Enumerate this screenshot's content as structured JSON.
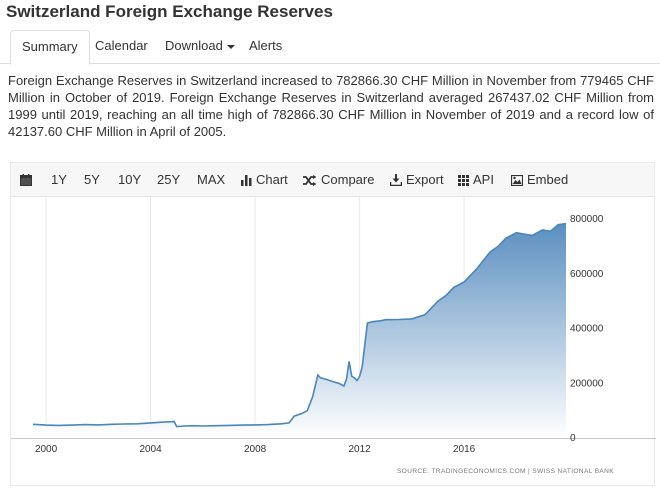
{
  "page": {
    "title": "Switzerland Foreign Exchange Reserves"
  },
  "tabs": [
    {
      "label": "Summary",
      "active": true
    },
    {
      "label": "Calendar"
    },
    {
      "label": "Download"
    },
    {
      "label": "Alerts"
    }
  ],
  "summary_text": "Foreign Exchange Reserves in Switzerland increased to 782866.30 CHF Million in November from 779465 CHF Million in October of 2019. Foreign Exchange Reserves in Switzerland averaged 267437.02 CHF Million from 1999 until 2019, reaching an all time high of 782866.30 CHF Million in November of 2019 and a record low of 42137.60 CHF Million in April of 2005.",
  "toolbar": {
    "ranges": [
      "1Y",
      "5Y",
      "10Y",
      "25Y",
      "MAX"
    ],
    "chart_label": "Chart",
    "compare_label": "Compare",
    "export_label": "Export",
    "api_label": "API",
    "embed_label": "Embed",
    "icons": [
      "calendar-icon",
      "bar-chart-icon",
      "shuffle-icon",
      "download-icon",
      "grid-icon",
      "image-icon"
    ]
  },
  "credit": "SOURCE: TRADINGECONOMICS.COM | SWISS NATIONAL BANK",
  "colors": {
    "line": "#4a86ba",
    "area_top": "#5b8fc0",
    "area_bottom": "#ffffff",
    "grid": "#e8e8e8"
  },
  "chart_data": {
    "type": "area",
    "title": "",
    "xlabel": "",
    "ylabel": "",
    "grid": "vertical",
    "x_ticks": [
      "2000",
      "2004",
      "2008",
      "2012",
      "2016"
    ],
    "y_ticks": [
      "0",
      "200000",
      "400000",
      "600000",
      "800000"
    ],
    "xlim": [
      1999.5,
      2019.9
    ],
    "ylim": [
      0,
      800000
    ],
    "x": [
      1999.5,
      2000.0,
      2000.5,
      2001.0,
      2001.5,
      2002.0,
      2002.5,
      2003.0,
      2003.5,
      2004.0,
      2004.5,
      2004.9,
      2005.0,
      2005.3,
      2005.6,
      2006.0,
      2006.5,
      2007.0,
      2007.5,
      2008.0,
      2008.5,
      2009.0,
      2009.3,
      2009.5,
      2009.8,
      2010.0,
      2010.2,
      2010.4,
      2010.5,
      2010.7,
      2011.0,
      2011.2,
      2011.4,
      2011.5,
      2011.6,
      2011.7,
      2011.8,
      2011.9,
      2012.0,
      2012.1,
      2012.3,
      2012.5,
      2012.8,
      2013.0,
      2013.5,
      2014.0,
      2014.5,
      2015.0,
      2015.3,
      2015.6,
      2016.0,
      2016.5,
      2017.0,
      2017.3,
      2017.6,
      2018.0,
      2018.3,
      2018.6,
      2019.0,
      2019.3,
      2019.6,
      2019.9
    ],
    "y": [
      50000,
      47000,
      46000,
      47000,
      49000,
      48000,
      50000,
      51000,
      52000,
      55000,
      58000,
      60000,
      42137.6,
      44000,
      45000,
      44000,
      45000,
      46000,
      47000,
      48000,
      49000,
      52000,
      55000,
      80000,
      90000,
      100000,
      150000,
      230000,
      220000,
      215000,
      205000,
      200000,
      190000,
      215000,
      280000,
      225000,
      220000,
      210000,
      225000,
      260000,
      420000,
      425000,
      428000,
      432000,
      433000,
      435000,
      450000,
      500000,
      520000,
      550000,
      570000,
      620000,
      680000,
      700000,
      730000,
      750000,
      745000,
      740000,
      760000,
      755000,
      779465,
      782866.3
    ]
  }
}
